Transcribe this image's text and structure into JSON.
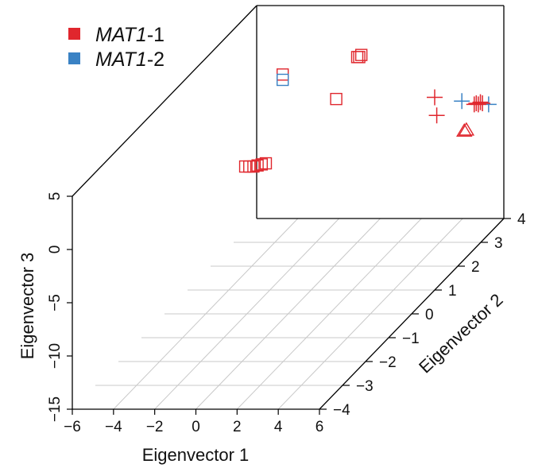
{
  "chart_data": {
    "type": "scatter3d",
    "colors": {
      "MAT1-1": "#e0262d",
      "MAT1-2": "#3a82c4"
    },
    "legend": {
      "placement": "top-left",
      "entries": [
        {
          "gene_italic": "MAT1",
          "suffix": "-1",
          "color": "#e0262d"
        },
        {
          "gene_italic": "MAT1",
          "suffix": "-2",
          "color": "#3a82c4"
        }
      ]
    },
    "axes": {
      "x": {
        "label": "Eigenvector 1",
        "range": [
          -6,
          6
        ],
        "ticks": [
          -6,
          -4,
          -2,
          0,
          2,
          4,
          6
        ],
        "tick_labels": [
          "−6",
          "−4",
          "−2",
          "0",
          "2",
          "4",
          "6"
        ]
      },
      "y": {
        "label": "Eigenvector 2",
        "range": [
          -4,
          4
        ],
        "ticks": [
          -4,
          -3,
          -2,
          -1,
          0,
          1,
          2,
          3,
          4
        ],
        "tick_labels": [
          "−4",
          "−3",
          "−2",
          "−1",
          "0",
          "1",
          "2",
          "3",
          "4"
        ]
      },
      "z": {
        "label": "Eigenvector 3",
        "range": [
          -15,
          5
        ],
        "ticks": [
          -15,
          -10,
          -5,
          0,
          5
        ],
        "tick_labels": [
          "−15",
          "−10",
          "−5",
          "0",
          "5"
        ]
      }
    },
    "grid": "bottom plane",
    "points": [
      {
        "group": "MAT1-1",
        "marker": "square",
        "x": -3.2,
        "y": 1.0,
        "z": -3.4
      },
      {
        "group": "MAT1-1",
        "marker": "square",
        "x": -3.0,
        "y": 1.0,
        "z": -3.4
      },
      {
        "group": "MAT1-1",
        "marker": "square",
        "x": -2.8,
        "y": 1.0,
        "z": -3.4
      },
      {
        "group": "MAT1-1",
        "marker": "square",
        "x": -2.6,
        "y": 1.0,
        "z": -3.3
      },
      {
        "group": "MAT1-1",
        "marker": "square",
        "x": -2.4,
        "y": 1.0,
        "z": -3.2
      },
      {
        "group": "MAT1-1",
        "marker": "square",
        "x": -2.2,
        "y": 1.0,
        "z": -3.1
      },
      {
        "group": "MAT1-1",
        "marker": "square",
        "x": -2.5,
        "y": 2.0,
        "z": 3.0
      },
      {
        "group": "MAT1-2",
        "marker": "square",
        "x": -2.5,
        "y": 2.0,
        "z": 2.5
      },
      {
        "group": "MAT1-1",
        "marker": "square",
        "x": 0.1,
        "y": 2.0,
        "z": 0.7
      },
      {
        "group": "MAT1-1",
        "marker": "square",
        "x": 0.0,
        "y": 3.0,
        "z": 2.4
      },
      {
        "group": "MAT1-1",
        "marker": "square",
        "x": 0.1,
        "y": 3.0,
        "z": 2.4
      },
      {
        "group": "MAT1-1",
        "marker": "square",
        "x": 0.2,
        "y": 3.0,
        "z": 2.6
      },
      {
        "group": "MAT1-1",
        "marker": "square",
        "x": 1.8,
        "y": 4.0,
        "z": 11.9
      },
      {
        "group": "MAT1-1",
        "marker": "square",
        "x": 2.0,
        "y": 4.0,
        "z": 12.0
      },
      {
        "group": "MAT1-1",
        "marker": "square",
        "x": 2.2,
        "y": 4.0,
        "z": 12.0
      },
      {
        "group": "MAT1-1",
        "marker": "square",
        "x": 2.4,
        "y": 4.0,
        "z": 12.1
      },
      {
        "group": "MAT1-2",
        "marker": "square",
        "x": 1.7,
        "y": 4.0,
        "z": 11.6
      },
      {
        "group": "MAT1-2",
        "marker": "square",
        "x": 1.9,
        "y": 4.0,
        "z": 11.6
      },
      {
        "group": "MAT1-2",
        "marker": "square",
        "x": 2.1,
        "y": 4.0,
        "z": 11.7
      },
      {
        "group": "MAT1-1",
        "marker": "plus",
        "x": 6.0,
        "y": 1.0,
        "z": 3.1
      },
      {
        "group": "MAT1-1",
        "marker": "plus",
        "x": 6.1,
        "y": 1.0,
        "z": 1.4
      },
      {
        "group": "MAT1-2",
        "marker": "plus",
        "x": 6.2,
        "y": 2.0,
        "z": 0.5
      },
      {
        "group": "MAT1-2",
        "marker": "plus",
        "x": 7.5,
        "y": 2.0,
        "z": 0.2
      },
      {
        "group": "MAT1-1",
        "marker": "plus",
        "x": 6.8,
        "y": 2.0,
        "z": 0.2
      },
      {
        "group": "MAT1-1",
        "marker": "plus",
        "x": 6.9,
        "y": 2.0,
        "z": 0.3
      },
      {
        "group": "MAT1-1",
        "marker": "plus",
        "x": 7.0,
        "y": 2.0,
        "z": 0.2
      },
      {
        "group": "MAT1-1",
        "marker": "plus",
        "x": 7.1,
        "y": 2.0,
        "z": 0.4
      },
      {
        "group": "MAT1-1",
        "marker": "plus",
        "x": 7.2,
        "y": 2.0,
        "z": 0.3
      },
      {
        "group": "MAT1-1",
        "marker": "triangle",
        "x": 5.2,
        "y": 3.0,
        "z": -4.5
      },
      {
        "group": "MAT1-1",
        "marker": "triangle",
        "x": 5.3,
        "y": 3.0,
        "z": -4.4
      }
    ]
  }
}
